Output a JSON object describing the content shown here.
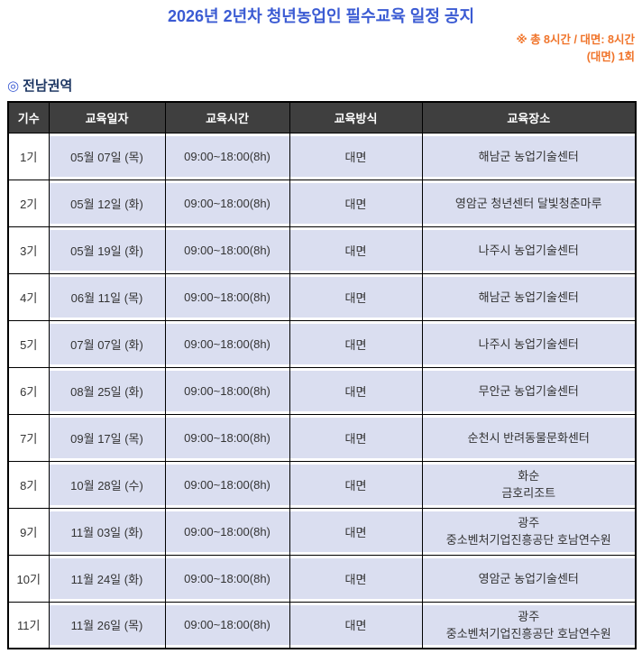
{
  "title": "2026년 2년차 청년농업인 필수교육 일정 공지",
  "note": {
    "line1": "※ 총 8시간 / 대면: 8시간",
    "line2": "(대면) 1회"
  },
  "section": {
    "marker": "◎",
    "label": "전남권역"
  },
  "colors": {
    "title_blue": "#3B5BD3",
    "note_orange": "#F0742A",
    "section_navy": "#1F3864",
    "header_bg": "#3F3F3F",
    "header_text": "#FFFFFF",
    "cell_bg": "#DADEF0",
    "grid_line": "#000000",
    "body_text": "#333333"
  },
  "table": {
    "columns": [
      "기수",
      "교육일자",
      "교육시간",
      "교육방식",
      "교육장소"
    ],
    "rows": [
      {
        "cohort": "1기",
        "date": "05월 07일 (목)",
        "time": "09:00~18:00(8h)",
        "method": "대면",
        "venue": [
          "해남군 농업기술센터"
        ]
      },
      {
        "cohort": "2기",
        "date": "05월 12일 (화)",
        "time": "09:00~18:00(8h)",
        "method": "대면",
        "venue": [
          "영암군 청년센터 달빛청춘마루"
        ]
      },
      {
        "cohort": "3기",
        "date": "05월 19일 (화)",
        "time": "09:00~18:00(8h)",
        "method": "대면",
        "venue": [
          "나주시 농업기술센터"
        ]
      },
      {
        "cohort": "4기",
        "date": "06월 11일 (목)",
        "time": "09:00~18:00(8h)",
        "method": "대면",
        "venue": [
          "해남군 농업기술센터"
        ]
      },
      {
        "cohort": "5기",
        "date": "07월 07일 (화)",
        "time": "09:00~18:00(8h)",
        "method": "대면",
        "venue": [
          "나주시 농업기술센터"
        ]
      },
      {
        "cohort": "6기",
        "date": "08월 25일 (화)",
        "time": "09:00~18:00(8h)",
        "method": "대면",
        "venue": [
          "무안군 농업기술센터"
        ]
      },
      {
        "cohort": "7기",
        "date": "09월 17일 (목)",
        "time": "09:00~18:00(8h)",
        "method": "대면",
        "venue": [
          "순천시 반려동물문화센터"
        ]
      },
      {
        "cohort": "8기",
        "date": "10월 28일 (수)",
        "time": "09:00~18:00(8h)",
        "method": "대면",
        "venue": [
          "화순",
          "금호리조트"
        ]
      },
      {
        "cohort": "9기",
        "date": "11월 03일 (화)",
        "time": "09:00~18:00(8h)",
        "method": "대면",
        "venue": [
          "광주",
          "중소벤처기업진흥공단 호남연수원"
        ]
      },
      {
        "cohort": "10기",
        "date": "11월 24일 (화)",
        "time": "09:00~18:00(8h)",
        "method": "대면",
        "venue": [
          "영암군 농업기술센터"
        ]
      },
      {
        "cohort": "11기",
        "date": "11월 26일 (목)",
        "time": "09:00~18:00(8h)",
        "method": "대면",
        "venue": [
          "광주",
          "중소벤처기업진흥공단 호남연수원"
        ]
      }
    ]
  }
}
